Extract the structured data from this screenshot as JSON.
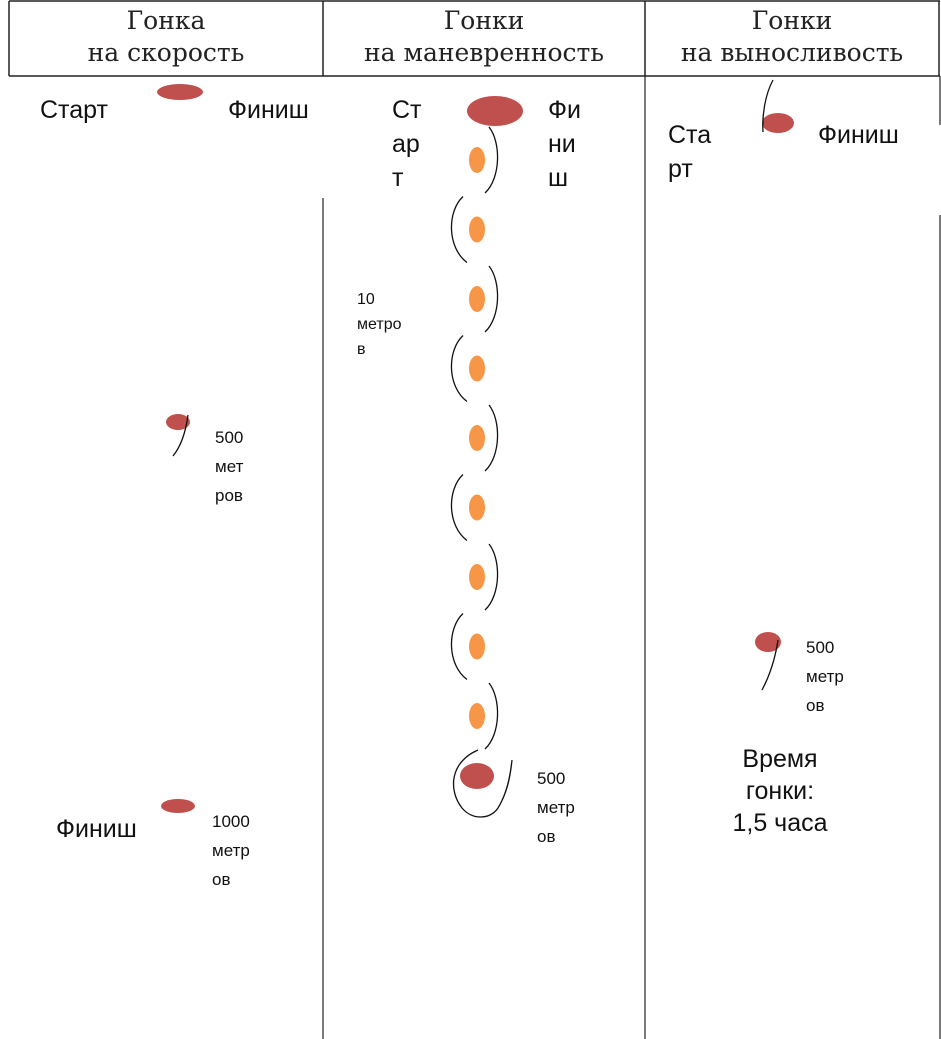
{
  "columns": [
    {
      "id": "speed",
      "title_line1": "Гонка",
      "title_line2": "на скорость"
    },
    {
      "id": "maneuver",
      "title_line1": "Гонки",
      "title_line2": "на маневренность"
    },
    {
      "id": "endurance",
      "title_line1": "Гонки",
      "title_line2": "на выносливость"
    }
  ],
  "speed": {
    "start": "Старт",
    "finish_top": "Финиш",
    "mark_500": [
      "500",
      "мет",
      "ров"
    ],
    "finish_bottom": "Финиш",
    "mark_1000": [
      "1000",
      "метр",
      "ов"
    ]
  },
  "maneuver": {
    "start": [
      "Ст",
      "ар",
      "т"
    ],
    "finish": [
      "Фи",
      "ни",
      "ш"
    ],
    "gap": [
      "10",
      "метро",
      "в"
    ],
    "turn": [
      "500",
      "метр",
      "ов"
    ],
    "cone_count": 9
  },
  "endurance": {
    "start": [
      "Ста",
      "рт"
    ],
    "finish": "Финиш",
    "turn": [
      "500",
      "метр",
      "ов"
    ],
    "time": [
      "Время",
      "гонки:",
      "1,5 часа"
    ]
  },
  "colors": {
    "marker_red": "#c0504d",
    "cone_orange": "#f79646",
    "grid_line": "#222222"
  }
}
